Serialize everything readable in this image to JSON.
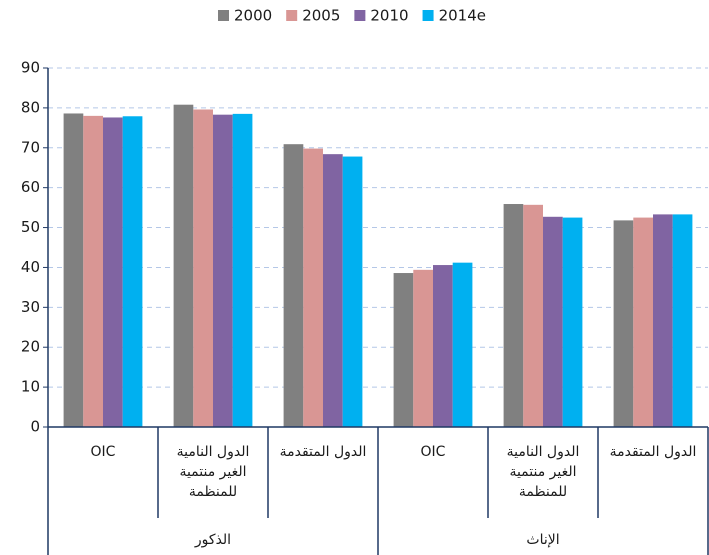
{
  "chart_data": {
    "type": "bar",
    "categories": [
      "OIC",
      "الدول النامية\nالغير منتمية\nللمنظمة",
      "الدول المتقدمة",
      "OIC",
      "الدول النامية\nالغير منتمية\nللمنظمة",
      "الدول المتقدمة"
    ],
    "group_labels": [
      "الذكور",
      "الإناث"
    ],
    "series": [
      {
        "name": "2000",
        "color": "#808080",
        "values": [
          78.6,
          80.8,
          70.9,
          38.6,
          55.9,
          51.8
        ]
      },
      {
        "name": "2005",
        "color": "#d99694",
        "values": [
          78.0,
          79.6,
          69.8,
          39.4,
          55.7,
          52.5
        ]
      },
      {
        "name": "2010",
        "color": "#8064a2",
        "values": [
          77.6,
          78.3,
          68.4,
          40.6,
          52.7,
          53.3
        ]
      },
      {
        "name": "2014e",
        "color": "#00b0f0",
        "values": [
          77.9,
          78.5,
          67.8,
          41.2,
          52.5,
          53.3
        ]
      }
    ],
    "ylim": [
      0,
      90
    ],
    "yticks": [
      0,
      10,
      20,
      30,
      40,
      50,
      60,
      70,
      80,
      90
    ],
    "grid": true,
    "legend": "top"
  }
}
